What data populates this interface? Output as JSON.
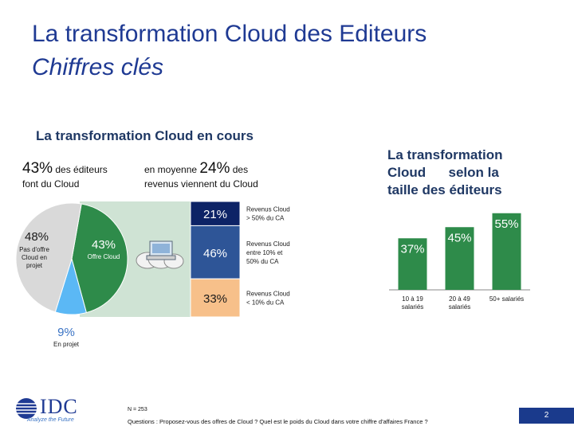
{
  "header": {
    "title": "La transformation Cloud des Editeurs",
    "subtitle": "Chiffres clés"
  },
  "left_section": {
    "title": "La transformation Cloud en cours",
    "stat_left_value": "43%",
    "stat_left_text1": " des éditeurs",
    "stat_left_text2": "font du Cloud",
    "stat_right_text1": "en moyenne ",
    "stat_right_value": "24%",
    "stat_right_text2": " des",
    "stat_right_text3": "revenus viennent du Cloud"
  },
  "right_section": {
    "title_lines": [
      "La transformation",
      "Cloud      selon la",
      "taille des éditeurs"
    ]
  },
  "chart_data": [
    {
      "type": "pie",
      "slices": [
        {
          "value": 48,
          "label": "48%",
          "text_lines": [
            "Pas d'offre",
            "Cloud en",
            "projet"
          ],
          "color": "#d9d9d9"
        },
        {
          "value": 43,
          "label": "43%",
          "text_lines": [
            "Offre Cloud"
          ],
          "color": "#2e8b4a"
        },
        {
          "value": 9,
          "label": "9%",
          "text_lines": [
            "En projet"
          ],
          "color": "#5bb8f5"
        }
      ]
    },
    {
      "type": "bar",
      "stacked": true,
      "segments": [
        {
          "value": 21,
          "label": "21%",
          "color": "#0d2366",
          "legend_lines": [
            "Revenus Cloud",
            "> 50% du CA"
          ]
        },
        {
          "value": 46,
          "label": "46%",
          "color": "#2e5597",
          "legend_lines": [
            "Revenus Cloud",
            "entre 10% et",
            "50% du CA"
          ]
        },
        {
          "value": 33,
          "label": "33%",
          "color": "#f7c08a",
          "legend_lines": [
            "Revenus Cloud",
            "< 10% du CA"
          ]
        }
      ]
    },
    {
      "type": "bar",
      "categories": [
        [
          "10 à 19",
          "salariés"
        ],
        [
          "20 à 49",
          "salariés"
        ],
        [
          "50+ salariés"
        ]
      ],
      "values": [
        37,
        45,
        55
      ],
      "labels": [
        "37%",
        "45%",
        "55%"
      ],
      "color": "#2e8b4a"
    }
  ],
  "footer": {
    "n": "N = 253",
    "questions": "Questions : Proposez-vous des offres de Cloud  ? Quel est le poids du Cloud dans votre chiffre d'affaires France ?",
    "page": "2",
    "logo": "IDC",
    "tagline": "Analyze the Future"
  },
  "colors": {
    "title_blue": "#1f3a93",
    "green": "#2e8b4a",
    "light_green_bg": "#cfe3d4",
    "dark_navy": "#0d2366",
    "mid_blue": "#2e5597",
    "peach": "#f7c08a",
    "grey": "#d9d9d9",
    "light_blue": "#5bb8f5"
  }
}
